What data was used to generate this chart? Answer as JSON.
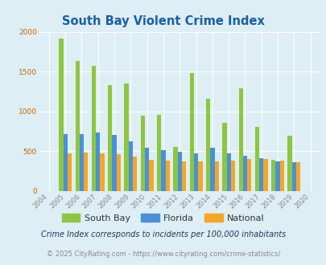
{
  "title": "South Bay Violent Crime Index",
  "years": [
    2004,
    2005,
    2006,
    2007,
    2008,
    2009,
    2010,
    2011,
    2012,
    2013,
    2014,
    2015,
    2016,
    2017,
    2018,
    2019,
    2020
  ],
  "south_bay": [
    0,
    1920,
    1630,
    1570,
    1330,
    1350,
    950,
    960,
    550,
    1480,
    1160,
    850,
    1290,
    800,
    390,
    690,
    0
  ],
  "florida": [
    0,
    710,
    710,
    730,
    700,
    620,
    540,
    510,
    490,
    470,
    540,
    470,
    440,
    415,
    370,
    360,
    0
  ],
  "national": [
    0,
    470,
    480,
    470,
    460,
    430,
    390,
    380,
    370,
    370,
    370,
    380,
    400,
    400,
    375,
    360,
    0
  ],
  "south_bay_color": "#8DC63F",
  "florida_color": "#4A90D9",
  "national_color": "#F5A623",
  "bg_color": "#ddeef5",
  "plot_bg_color": "#ddeef5",
  "ylim": [
    0,
    2000
  ],
  "yticks": [
    0,
    500,
    1000,
    1500,
    2000
  ],
  "legend_labels": [
    "South Bay",
    "Florida",
    "National"
  ],
  "footnote1": "Crime Index corresponds to incidents per 100,000 inhabitants",
  "footnote2": "© 2025 CityRating.com - https://www.cityrating.com/crime-statistics/",
  "title_color": "#1a5ea8",
  "ytick_color": "#cc6600",
  "xtick_color": "#888888",
  "footnote1_color": "#1a3a5c",
  "footnote2_color": "#888888",
  "grid_color": "#ffffff"
}
